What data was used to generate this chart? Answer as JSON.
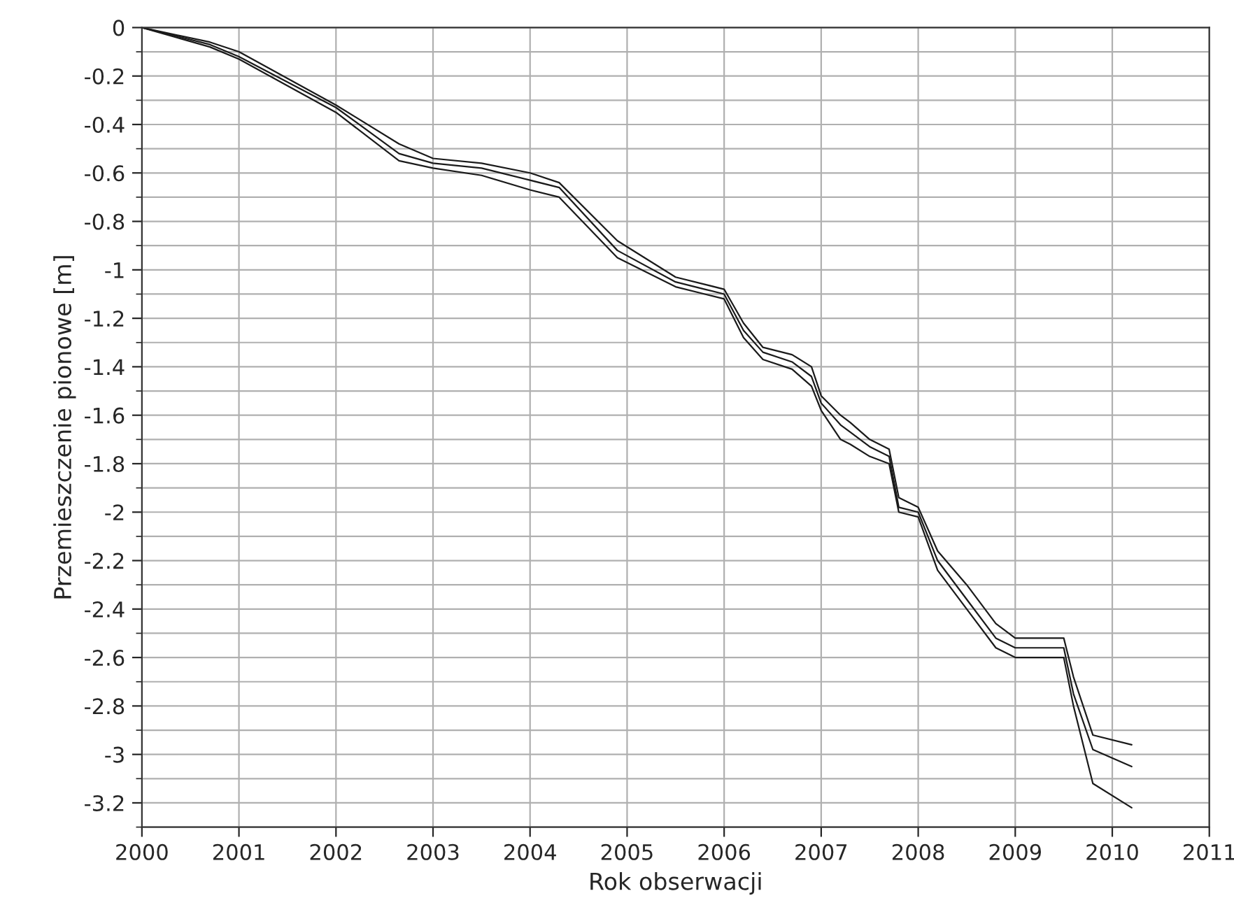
{
  "chart_data": {
    "type": "line",
    "xlabel": "Rok obserwacji",
    "ylabel": "Przemieszczenie pionowe [m]",
    "xlim": [
      2000,
      2011
    ],
    "xticks": [
      2000,
      2001,
      2002,
      2003,
      2004,
      2005,
      2006,
      2007,
      2008,
      2009,
      2010,
      2011
    ],
    "ylim": [
      -3.3,
      0
    ],
    "yticks": [
      {
        "value": -3.2,
        "label": "-3.2"
      },
      {
        "value": -3,
        "label": "-3"
      },
      {
        "value": -2.8,
        "label": "-2.8"
      },
      {
        "value": -2.6,
        "label": "-2.6"
      },
      {
        "value": -2.4,
        "label": "-2.4"
      },
      {
        "value": -2.2,
        "label": "-2.2"
      },
      {
        "value": -2,
        "label": "-2"
      },
      {
        "value": -1.8,
        "label": "-1.8"
      },
      {
        "value": -1.6,
        "label": "-1.6"
      },
      {
        "value": -1.4,
        "label": "-1.4"
      },
      {
        "value": -1.2,
        "label": "-1.2"
      },
      {
        "value": -1,
        "label": "-1"
      },
      {
        "value": -0.8,
        "label": "-0.8"
      },
      {
        "value": -0.6,
        "label": "-0.6"
      },
      {
        "value": -0.4,
        "label": "-0.4"
      },
      {
        "value": -0.2,
        "label": "-0.2"
      },
      0
    ],
    "grid": true,
    "marker": "none",
    "line_style": "solid",
    "legend": false,
    "x": [
      2000.0,
      2000.7,
      2001.0,
      2002.0,
      2002.65,
      2003.0,
      2003.5,
      2004.0,
      2004.3,
      2004.9,
      2005.5,
      2005.8,
      2006.0,
      2006.2,
      2006.4,
      2006.7,
      2006.9,
      2007.0,
      2007.2,
      2007.3,
      2007.5,
      2007.7,
      2007.8,
      2008.0,
      2008.2,
      2008.5,
      2008.8,
      2009.0,
      2009.5,
      2009.6,
      2009.8,
      2010.2
    ],
    "series": [
      {
        "color": "#1a1a1a",
        "values": [
          0,
          -0.06,
          -0.1,
          -0.32,
          -0.48,
          -0.54,
          -0.56,
          -0.6,
          -0.64,
          -0.88,
          -1.03,
          -1.06,
          -1.08,
          -1.22,
          -1.32,
          -1.35,
          -1.4,
          -1.52,
          -1.6,
          -1.63,
          -1.7,
          -1.74,
          -1.94,
          -1.98,
          -2.16,
          -2.3,
          -2.46,
          -2.52,
          -2.52,
          -2.68,
          -2.92,
          -2.96
        ]
      },
      {
        "color": "#1a1a1a",
        "values": [
          0,
          -0.07,
          -0.12,
          -0.33,
          -0.52,
          -0.56,
          -0.58,
          -0.63,
          -0.66,
          -0.92,
          -1.05,
          -1.08,
          -1.1,
          -1.25,
          -1.34,
          -1.38,
          -1.44,
          -1.55,
          -1.64,
          -1.67,
          -1.73,
          -1.77,
          -1.98,
          -2.0,
          -2.2,
          -2.36,
          -2.52,
          -2.56,
          -2.56,
          -2.75,
          -2.98,
          -3.05
        ]
      },
      {
        "color": "#1a1a1a",
        "values": [
          0,
          -0.08,
          -0.13,
          -0.35,
          -0.55,
          -0.58,
          -0.61,
          -0.67,
          -0.7,
          -0.95,
          -1.07,
          -1.1,
          -1.12,
          -1.28,
          -1.37,
          -1.41,
          -1.48,
          -1.58,
          -1.7,
          -1.72,
          -1.77,
          -1.8,
          -2.0,
          -2.02,
          -2.24,
          -2.4,
          -2.56,
          -2.6,
          -2.6,
          -2.8,
          -3.12,
          -3.22
        ]
      }
    ]
  }
}
